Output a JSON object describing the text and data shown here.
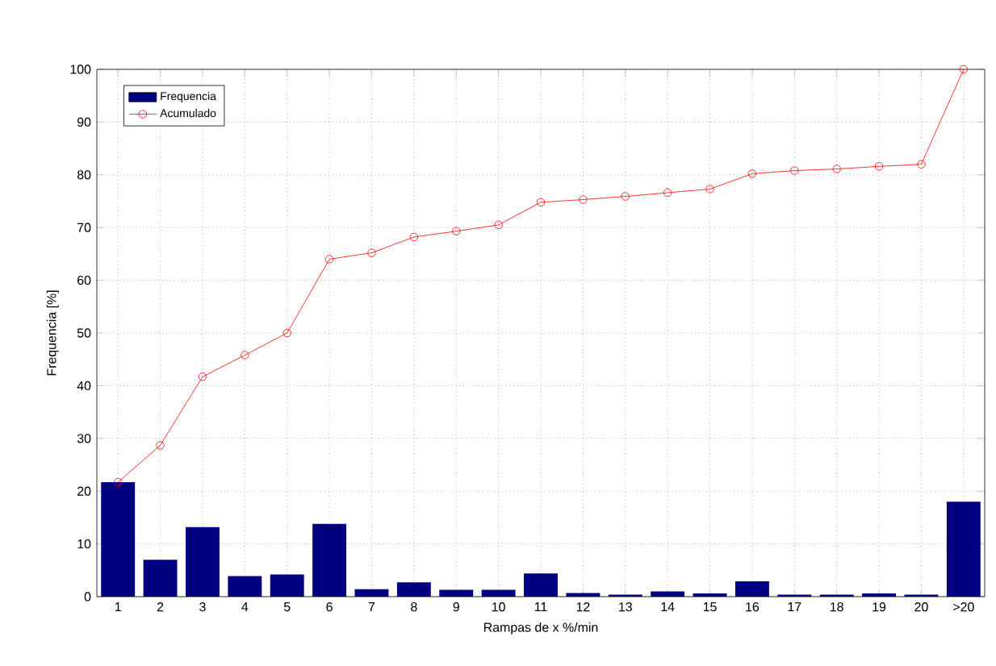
{
  "chart_data": {
    "type": "bar",
    "xlabel": "Rampas de x %/min",
    "ylabel": "Frequencia [%]",
    "categories": [
      "1",
      "2",
      "3",
      "4",
      "5",
      "6",
      "7",
      "8",
      "9",
      "10",
      "11",
      "12",
      "13",
      "14",
      "15",
      "16",
      "17",
      "18",
      "19",
      "20",
      ">20"
    ],
    "series": [
      {
        "name": "Frequencia",
        "color": "#000080",
        "values": [
          21.7,
          7,
          13.2,
          3.9,
          4.2,
          13.8,
          1.4,
          2.7,
          1.3,
          1.3,
          4.4,
          0.7,
          0.4,
          1.0,
          0.6,
          2.9,
          0.4,
          0.4,
          0.6,
          0.4,
          18.0
        ]
      },
      {
        "name": "Acumulado",
        "type": "line",
        "color": "#ff0000",
        "marker": "circle",
        "values": [
          21.7,
          28.7,
          41.7,
          45.8,
          50.0,
          64.0,
          65.2,
          68.2,
          69.3,
          70.5,
          74.8,
          75.3,
          75.9,
          76.6,
          77.3,
          80.2,
          80.8,
          81.1,
          81.6,
          82.0,
          100
        ]
      }
    ],
    "ylim": [
      0,
      100
    ],
    "yticks": [
      0,
      10,
      20,
      30,
      40,
      50,
      60,
      70,
      80,
      90,
      100
    ],
    "grid": true,
    "legend": "top left"
  }
}
